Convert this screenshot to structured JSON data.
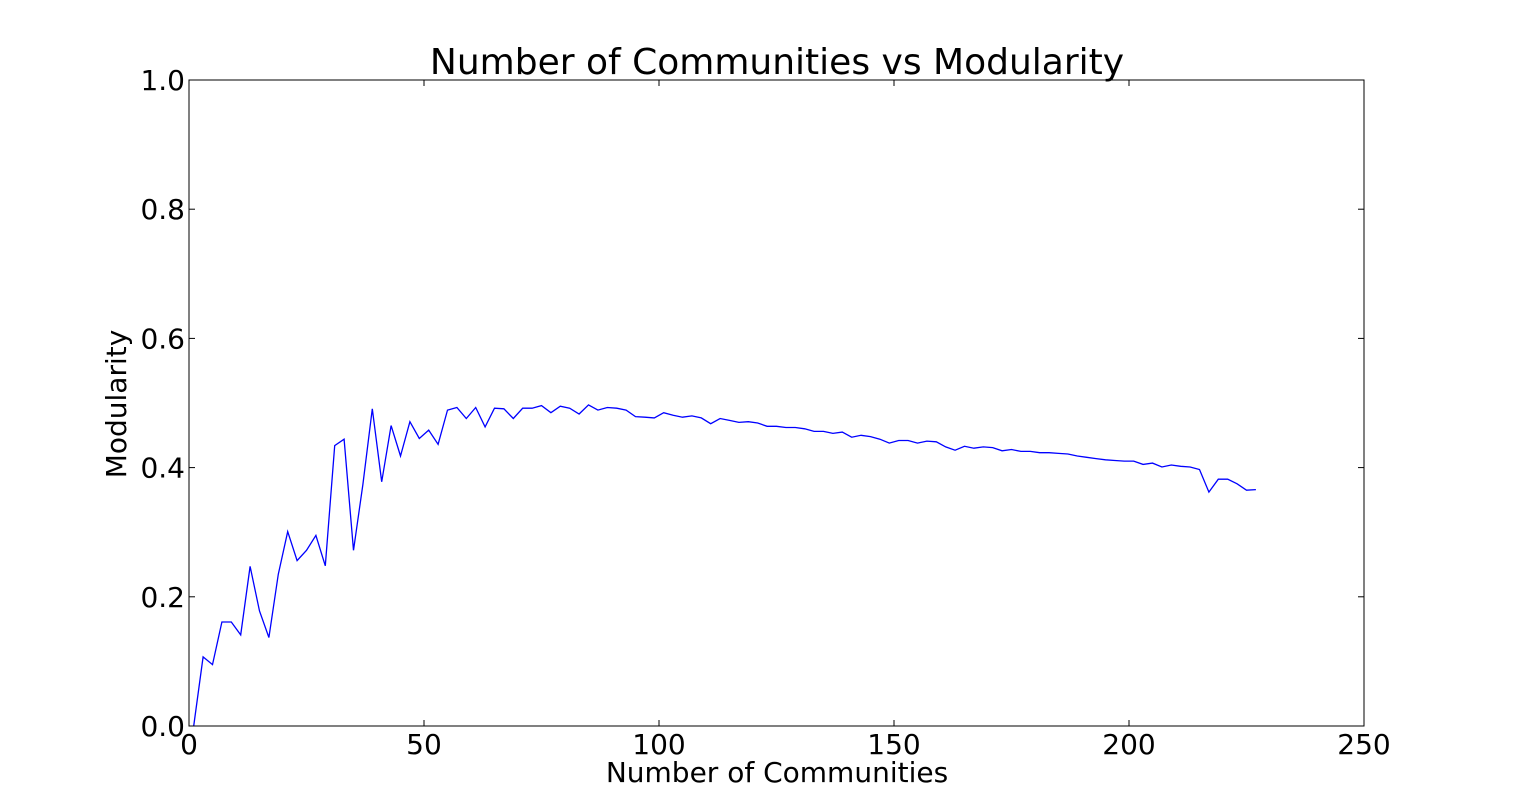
{
  "colors": {
    "line": "#0000ff",
    "axes": "#000000",
    "background": "#ffffff"
  },
  "chart_data": {
    "type": "line",
    "title": "Number of Communities vs Modularity",
    "xlabel": "Number of Communities",
    "ylabel": "Modularity",
    "xlim": [
      0,
      250
    ],
    "ylim": [
      0.0,
      1.0
    ],
    "xticks": [
      0,
      50,
      100,
      150,
      200,
      250
    ],
    "xtick_labels": [
      "0",
      "50",
      "100",
      "150",
      "200",
      "250"
    ],
    "yticks": [
      0.0,
      0.2,
      0.4,
      0.6,
      0.8,
      1.0
    ],
    "ytick_labels": [
      "0.0",
      "0.2",
      "0.4",
      "0.6",
      "0.8",
      "1.0"
    ],
    "grid": false,
    "series": [
      {
        "x": [
          1,
          3,
          5,
          7,
          9,
          11,
          13,
          15,
          17,
          19,
          21,
          23,
          25,
          27,
          29,
          31,
          33,
          35,
          37,
          39,
          41,
          43,
          45,
          47,
          49,
          51,
          53,
          55,
          57,
          59,
          61,
          63,
          65,
          67,
          69,
          71,
          73,
          75,
          77,
          79,
          81,
          83,
          85,
          87,
          89,
          91,
          93,
          95,
          97,
          99,
          101,
          103,
          105,
          107,
          109,
          111,
          113,
          115,
          117,
          119,
          121,
          123,
          125,
          127,
          129,
          131,
          133,
          135,
          137,
          139,
          141,
          143,
          145,
          147,
          149,
          151,
          153,
          155,
          157,
          159,
          161,
          163,
          165,
          167,
          169,
          171,
          173,
          175,
          177,
          179,
          181,
          183,
          185,
          187,
          189,
          191,
          193,
          195,
          197,
          199,
          201,
          203,
          205,
          207,
          209,
          211,
          213,
          215,
          217,
          219,
          221,
          223,
          225,
          227
        ],
        "y": [
          0.0,
          0.107,
          0.095,
          0.161,
          0.161,
          0.141,
          0.247,
          0.178,
          0.137,
          0.235,
          0.301,
          0.256,
          0.272,
          0.295,
          0.248,
          0.434,
          0.444,
          0.272,
          0.374,
          0.491,
          0.378,
          0.465,
          0.418,
          0.471,
          0.445,
          0.458,
          0.436,
          0.489,
          0.493,
          0.476,
          0.493,
          0.463,
          0.492,
          0.491,
          0.476,
          0.492,
          0.492,
          0.496,
          0.485,
          0.495,
          0.492,
          0.483,
          0.497,
          0.489,
          0.493,
          0.492,
          0.489,
          0.479,
          0.478,
          0.477,
          0.485,
          0.481,
          0.478,
          0.48,
          0.477,
          0.468,
          0.476,
          0.473,
          0.47,
          0.471,
          0.469,
          0.464,
          0.464,
          0.462,
          0.462,
          0.46,
          0.456,
          0.456,
          0.453,
          0.455,
          0.447,
          0.45,
          0.448,
          0.444,
          0.438,
          0.442,
          0.442,
          0.438,
          0.441,
          0.44,
          0.432,
          0.427,
          0.433,
          0.43,
          0.432,
          0.431,
          0.426,
          0.428,
          0.425,
          0.425,
          0.423,
          0.423,
          0.422,
          0.421,
          0.418,
          0.416,
          0.414,
          0.412,
          0.411,
          0.41,
          0.41,
          0.405,
          0.407,
          0.401,
          0.404,
          0.402,
          0.401,
          0.397,
          0.362,
          0.382,
          0.382,
          0.375,
          0.365,
          0.366
        ]
      }
    ]
  }
}
